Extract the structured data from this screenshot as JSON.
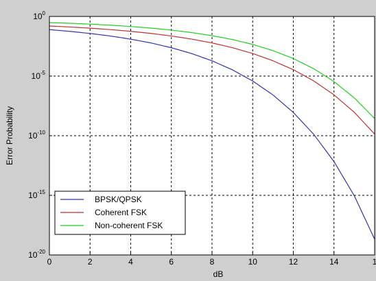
{
  "chart_data": {
    "type": "line",
    "title": "",
    "xlabel": "dB",
    "ylabel": "Error Probability",
    "xlim": [
      0,
      16
    ],
    "ylim_exponent": [
      -20,
      0
    ],
    "y_scale": "log",
    "y_base": 10,
    "grid": true,
    "legend_position": "bottom-left",
    "x_ticks": [
      "0",
      "2",
      "4",
      "6",
      "8",
      "10",
      "12",
      "14",
      "1"
    ],
    "y_ticks": [
      {
        "base": "10",
        "exp": "-20"
      },
      {
        "base": "10",
        "exp": "-15"
      },
      {
        "base": "10",
        "exp": "-10"
      },
      {
        "base": "10",
        "exp": "-5"
      },
      {
        "base": "10",
        "exp": "0"
      }
    ],
    "series": [
      {
        "name": "BPSK/QPSK",
        "color": "#3333aa",
        "x": [
          0,
          1,
          2,
          3,
          4,
          5,
          6,
          7,
          8,
          9,
          10,
          11,
          12,
          13,
          14,
          15,
          16
        ],
        "y": [
          0.0786,
          0.0563,
          0.0375,
          0.0229,
          0.0125,
          0.00595,
          0.00239,
          0.000773,
          0.000191,
          3.36e-05,
          3.87e-06,
          2.61e-07,
          9e-09,
          1.33e-10,
          6.8e-13,
          9.1e-16,
          2.1e-19
        ]
      },
      {
        "name": "Coherent FSK",
        "color": "#bb3333",
        "x": [
          0,
          1,
          2,
          3,
          4,
          5,
          6,
          7,
          8,
          9,
          10,
          11,
          12,
          13,
          14,
          15,
          16
        ],
        "y": [
          0.1587,
          0.1309,
          0.104,
          0.0789,
          0.0565,
          0.0377,
          0.023,
          0.0126,
          0.006,
          0.00242,
          0.000783,
          0.000193,
          3.43e-05,
          3.97e-06,
          2.68e-07,
          9.2e-09,
          1.37e-10
        ]
      },
      {
        "name": "Non-coherent FSK",
        "color": "#22cc22",
        "x": [
          0,
          1,
          2,
          3,
          4,
          5,
          6,
          7,
          8,
          9,
          10,
          11,
          12,
          13,
          14,
          15,
          16
        ],
        "y": [
          0.3033,
          0.2668,
          0.2268,
          0.1849,
          0.1437,
          0.1052,
          0.0715,
          0.0443,
          0.0245,
          0.0117,
          0.00454,
          0.00136,
          0.000295,
          4.2e-05,
          3.47e-06,
          1.48e-07,
          2.78e-09
        ]
      }
    ]
  }
}
